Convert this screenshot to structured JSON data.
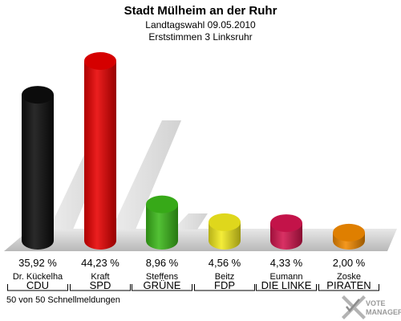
{
  "header": {
    "title": "Stadt Mülheim an der Ruhr",
    "subtitle1": "Landtagswahl 09.05.2010",
    "subtitle2": "Erststimmen 3 Linksruhr"
  },
  "chart_data": {
    "type": "bar",
    "title": "Stadt Mülheim an der Ruhr",
    "subtitle": [
      "Landtagswahl 09.05.2010",
      "Erststimmen 3 Linksruhr"
    ],
    "categories": [
      "CDU",
      "SPD",
      "GRÜNE",
      "FDP",
      "DIE LINKE",
      "PIRATEN"
    ],
    "candidates": [
      "Dr. Kückelha",
      "Kraft",
      "Steffens",
      "Beitz",
      "Eumann",
      "Zoske"
    ],
    "values": [
      35.92,
      44.23,
      8.96,
      4.56,
      4.33,
      2.0
    ],
    "value_labels": [
      "35,92 %",
      "44,23 %",
      "8,96 %",
      "4,56 %",
      "4,33 %",
      "2,00 %"
    ],
    "colors": [
      "#0d0d0d",
      "#e80000",
      "#3cb81a",
      "#f2ea1e",
      "#d4154f",
      "#f28a00"
    ],
    "ylim": [
      0,
      50
    ],
    "grid": false,
    "legend": "none"
  },
  "footer": {
    "status": "50 von 50 Schnellmeldungen",
    "logo_line1": "VOTE",
    "logo_line2": "MANAGER"
  }
}
